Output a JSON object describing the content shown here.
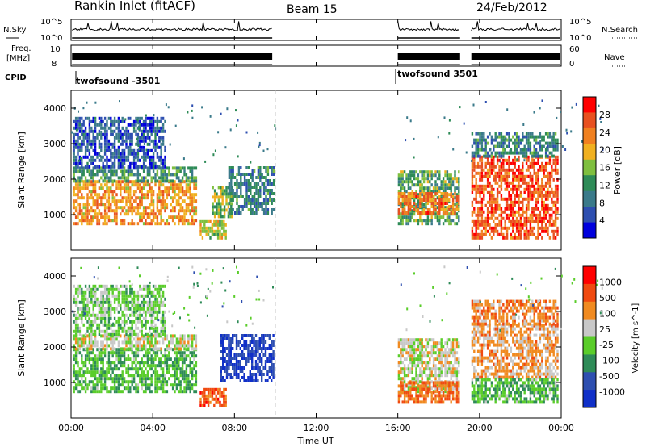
{
  "header": {
    "station": "Rankin Inlet (fitACF)",
    "beam": "Beam 15",
    "date": "24/Feb/2012"
  },
  "left_labels": {
    "nsky": "N.Sky",
    "nsky_hi": "10^5",
    "nsky_lo": "10^0",
    "freq": "Freq.",
    "freq_unit": "[MHz]",
    "freq_hi": "10",
    "freq_lo": "8",
    "cpid": "CPID"
  },
  "right_labels": {
    "nsearch": "N.Search",
    "nsearch_hi": "10^5",
    "nsearch_lo": "10^0",
    "nave": "Nave",
    "nave_hi": "60",
    "nave_lo": "0"
  },
  "cpid_labels": [
    "twofsound -3501",
    "twofsound 3501"
  ],
  "colors": {
    "power_scale": [
      "#0000dd",
      "#2e4fb0",
      "#3a7a8a",
      "#2e8b57",
      "#7fbf3f",
      "#f0b020",
      "#f08020",
      "#e85020",
      "#ff0000"
    ],
    "velocity_scale": [
      "#ff0000",
      "#f04a10",
      "#f08a20",
      "#c8c8c8",
      "#5acd2a",
      "#2e8b57",
      "#2e4fb0",
      "#1030c8"
    ]
  },
  "chart_data": [
    {
      "type": "heatmap",
      "name": "Power",
      "ylabel": "Slant Range [km]",
      "xlabel": "",
      "xlim": [
        "00:00",
        "24:00"
      ],
      "ylim": [
        0,
        4500
      ],
      "yticks": [
        "1000",
        "2000",
        "3000",
        "4000"
      ],
      "colorbar_label": "Power [dB]",
      "colorbar_ticks": [
        "4",
        "8",
        "12",
        "16",
        "20",
        "24",
        "28"
      ],
      "colorbar_range": [
        0,
        32
      ],
      "blocks": [
        {
          "t0": 0.1,
          "t1": 6.1,
          "r0": 700,
          "r1": 1900,
          "val": 22
        },
        {
          "t0": 0.1,
          "t1": 6.1,
          "r0": 1900,
          "r1": 2300,
          "val": 12
        },
        {
          "t0": 0.1,
          "t1": 4.6,
          "r0": 2300,
          "r1": 3700,
          "val": 6
        },
        {
          "t0": 6.9,
          "t1": 7.9,
          "r0": 900,
          "r1": 1800,
          "val": 16
        },
        {
          "t0": 7.7,
          "t1": 9.9,
          "r0": 1000,
          "r1": 2300,
          "val": 10
        },
        {
          "t0": 6.3,
          "t1": 7.6,
          "r0": 300,
          "r1": 800,
          "val": 18
        },
        {
          "t0": 16.0,
          "t1": 19.0,
          "r0": 700,
          "r1": 2200,
          "val": 14
        },
        {
          "t0": 16.0,
          "t1": 19.0,
          "r0": 1000,
          "r1": 1600,
          "val": 24
        },
        {
          "t0": 19.6,
          "t1": 23.8,
          "r0": 300,
          "r1": 2600,
          "val": 26
        },
        {
          "t0": 19.6,
          "t1": 23.8,
          "r0": 2600,
          "r1": 3300,
          "val": 10
        }
      ]
    },
    {
      "type": "heatmap",
      "name": "Velocity",
      "ylabel": "Slant Range [km]",
      "xlabel": "Time UT",
      "xlim": [
        "00:00",
        "24:00"
      ],
      "ylim": [
        0,
        4500
      ],
      "yticks": [
        "1000",
        "2000",
        "3000",
        "4000"
      ],
      "xticks": [
        "00:00",
        "04:00",
        "08:00",
        "12:00",
        "16:00",
        "20:00",
        "00:00"
      ],
      "colorbar_label": "Velocity [m s^-1]",
      "colorbar_ticks": [
        "-1000",
        "-500",
        "-100",
        "-25",
        "25",
        "100",
        "500",
        "1000"
      ],
      "blocks": [
        {
          "t0": 0.1,
          "t1": 6.1,
          "r0": 700,
          "r1": 1900,
          "val": 0.62
        },
        {
          "t0": 0.1,
          "t1": 6.1,
          "r0": 1900,
          "r1": 2300,
          "val": 0.45
        },
        {
          "t0": 0.1,
          "t1": 4.6,
          "r0": 2300,
          "r1": 3700,
          "val": 0.55
        },
        {
          "t0": 6.3,
          "t1": 7.6,
          "r0": 300,
          "r1": 800,
          "val": 0.2
        },
        {
          "t0": 7.3,
          "t1": 9.9,
          "r0": 1000,
          "r1": 2300,
          "val": 0.88
        },
        {
          "t0": 16.0,
          "t1": 19.0,
          "r0": 700,
          "r1": 2200,
          "val": 0.45
        },
        {
          "t0": 16.0,
          "t1": 19.0,
          "r0": 400,
          "r1": 1000,
          "val": 0.25
        },
        {
          "t0": 19.6,
          "t1": 23.8,
          "r0": 1100,
          "r1": 2600,
          "val": 0.35
        },
        {
          "t0": 19.6,
          "t1": 23.8,
          "r0": 400,
          "r1": 1100,
          "val": 0.6
        },
        {
          "t0": 19.6,
          "t1": 23.8,
          "r0": 2600,
          "r1": 3300,
          "val": 0.3
        }
      ]
    }
  ],
  "xaxis": {
    "ticks": [
      "00:00",
      "04:00",
      "08:00",
      "12:00",
      "16:00",
      "20:00",
      "00:00"
    ],
    "label": "Time UT"
  }
}
